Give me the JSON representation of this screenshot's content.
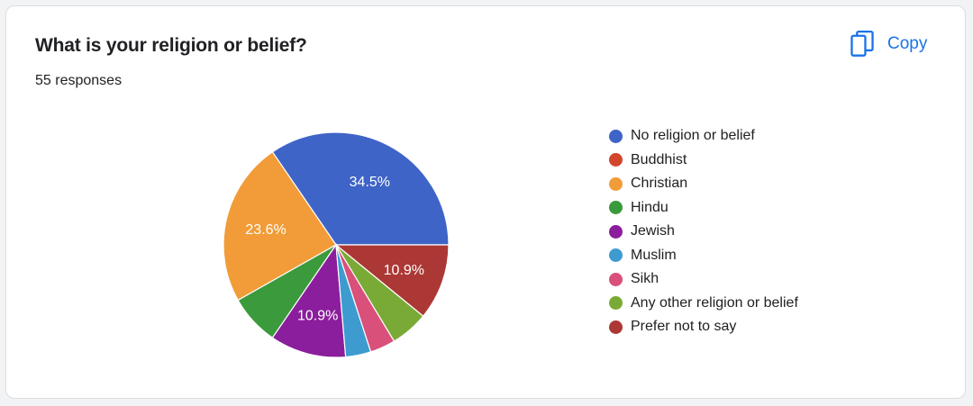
{
  "card": {
    "title": "What is your religion or belief?",
    "subtitle": "55 responses",
    "copy_label": "Copy",
    "copy_icon": "copy-icon",
    "accent_color": "#1a73e8"
  },
  "chart_data": {
    "type": "pie",
    "total": 55,
    "legend_position": "right",
    "slices": [
      {
        "label": "No religion or belief",
        "count": 19,
        "percent_label": "34.5%",
        "color": "#3f64c7"
      },
      {
        "label": "Buddhist",
        "count": 0,
        "percent_label": "",
        "color": "#d2462c"
      },
      {
        "label": "Christian",
        "count": 13,
        "percent_label": "23.6%",
        "color": "#f19c38"
      },
      {
        "label": "Hindu",
        "count": 4,
        "percent_label": "",
        "color": "#3b9a3c"
      },
      {
        "label": "Jewish",
        "count": 6,
        "percent_label": "10.9%",
        "color": "#8b1e9c"
      },
      {
        "label": "Muslim",
        "count": 2,
        "percent_label": "",
        "color": "#3d9bd0"
      },
      {
        "label": "Sikh",
        "count": 2,
        "percent_label": "",
        "color": "#d9507a"
      },
      {
        "label": "Any other religion or belief",
        "count": 3,
        "percent_label": "",
        "color": "#7aaa36"
      },
      {
        "label": "Prefer not to say",
        "count": 6,
        "percent_label": "10.9%",
        "color": "#ab3834"
      }
    ]
  }
}
